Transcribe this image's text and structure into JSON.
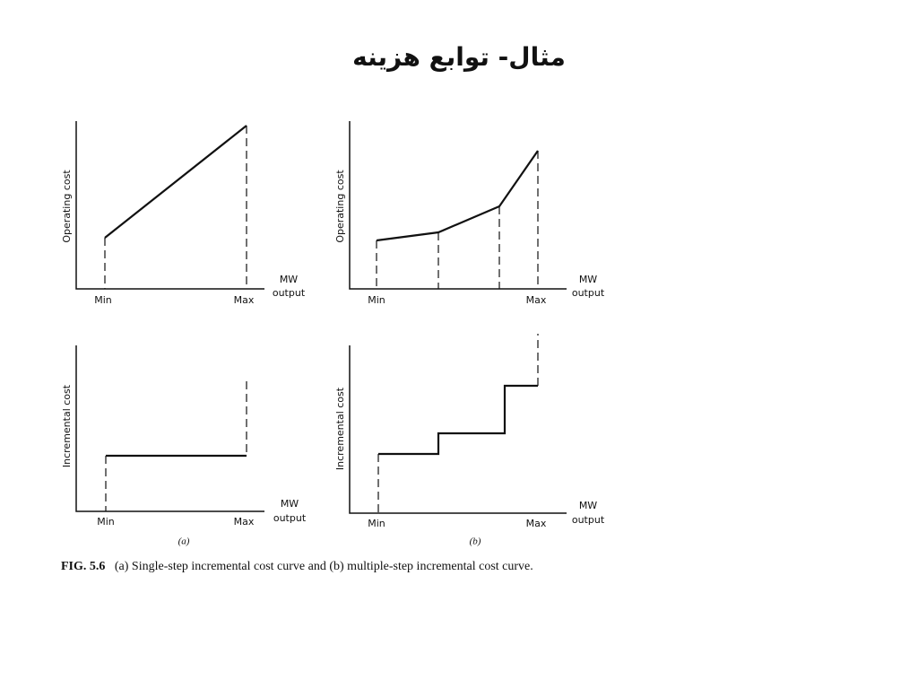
{
  "title": "مثال- توابع هزینه",
  "panels": [
    {
      "y_label": "Operating cost",
      "x_labels": [
        "Min",
        "Max"
      ],
      "x_axis_label": [
        "MW",
        "output"
      ]
    },
    {
      "y_label": "Operating cost",
      "x_labels": [
        "Min",
        "Max"
      ],
      "x_axis_label": [
        "MW",
        "output"
      ]
    },
    {
      "y_label": "Incremental cost",
      "x_labels": [
        "Min",
        "Max"
      ],
      "x_axis_label": [
        "MW",
        "output"
      ]
    },
    {
      "y_label": "Incremental cost",
      "x_labels": [
        "Min",
        "Max"
      ],
      "x_axis_label": [
        "MW",
        "output"
      ]
    }
  ],
  "subcaptions": [
    "(a)",
    "(b)"
  ],
  "caption": {
    "label": "FIG. 5.6",
    "text": "(a) Single-step incremental cost curve and (b) multiple-step incremental cost curve."
  }
}
